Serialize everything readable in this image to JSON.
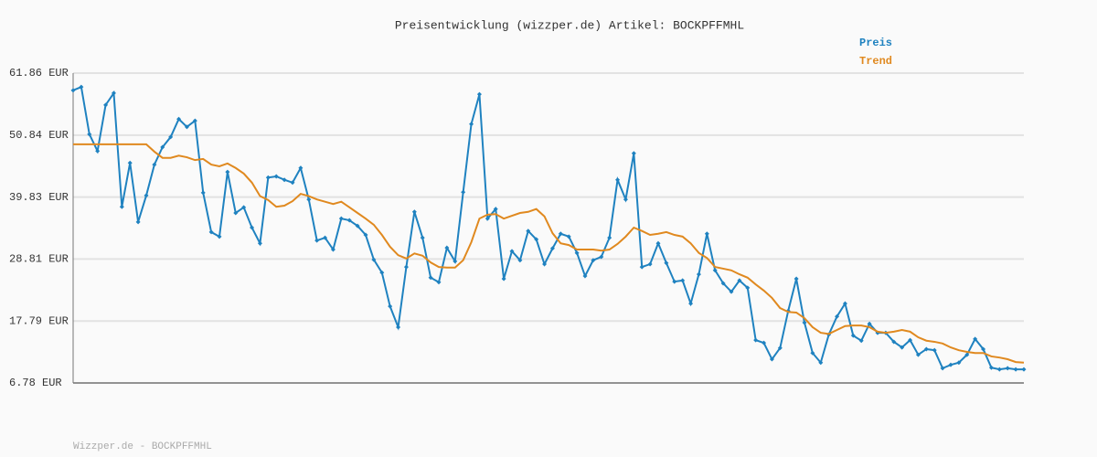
{
  "chart_data": {
    "type": "line",
    "title": "Preisentwicklung (wizzper.de) Artikel: BOCKPFFMHL",
    "footer": "Wizzper.de - BOCKPFFMHL",
    "ylim": [
      6.78,
      61.86
    ],
    "yticks": [
      {
        "value": 6.78,
        "label": "6.78 EUR"
      },
      {
        "value": 17.79,
        "label": "17.79 EUR"
      },
      {
        "value": 28.81,
        "label": "28.81 EUR"
      },
      {
        "value": 39.83,
        "label": "39.83 EUR"
      },
      {
        "value": 50.84,
        "label": "50.84 EUR"
      },
      {
        "value": 61.86,
        "label": "61.86 EUR"
      }
    ],
    "grid": true,
    "series": [
      {
        "name": "Preis",
        "color": "#1f82c0",
        "markers": true,
        "values": [
          58.8,
          59.4,
          51.0,
          48.0,
          56.2,
          58.3,
          38.1,
          45.9,
          35.4,
          40.1,
          45.6,
          48.7,
          50.5,
          53.7,
          52.3,
          53.4,
          40.6,
          33.6,
          32.8,
          44.3,
          37.0,
          38.0,
          34.4,
          31.6,
          43.3,
          43.5,
          42.9,
          42.4,
          45.0,
          39.4,
          32.1,
          32.6,
          30.5,
          36.0,
          35.7,
          34.7,
          33.1,
          28.7,
          26.4,
          20.4,
          16.7,
          27.4,
          37.2,
          32.6,
          25.5,
          24.7,
          30.8,
          28.4,
          40.7,
          52.8,
          58.1,
          36.0,
          37.7,
          25.3,
          30.2,
          28.6,
          33.8,
          32.3,
          27.9,
          30.7,
          33.3,
          32.8,
          29.9,
          25.8,
          28.6,
          29.2,
          32.6,
          42.9,
          39.4,
          47.6,
          27.4,
          27.9,
          31.6,
          28.1,
          24.8,
          25.0,
          20.9,
          26.1,
          33.3,
          26.8,
          24.5,
          23.0,
          25.0,
          23.7,
          14.4,
          13.9,
          11.0,
          13.0,
          19.6,
          25.3,
          17.5,
          12.1,
          10.4,
          15.4,
          18.6,
          20.9,
          15.2,
          14.3,
          17.3,
          15.7,
          15.7,
          14.1,
          13.1,
          14.4,
          11.8,
          12.8,
          12.6,
          9.4,
          10.0,
          10.4,
          11.8,
          14.6,
          12.8,
          9.5,
          9.2,
          9.4,
          9.2,
          9.2
        ]
      },
      {
        "name": "Trend",
        "color": "#e0891f",
        "markers": false,
        "values": [
          49.2,
          49.2,
          49.2,
          49.2,
          49.2,
          49.2,
          49.2,
          49.2,
          49.2,
          49.2,
          47.9,
          46.8,
          46.8,
          47.2,
          46.9,
          46.4,
          46.6,
          45.6,
          45.3,
          45.8,
          45.0,
          44.0,
          42.4,
          40.0,
          39.3,
          38.1,
          38.3,
          39.1,
          40.4,
          40.0,
          39.4,
          39.0,
          38.6,
          39.0,
          38.0,
          37.0,
          36.0,
          34.9,
          33.1,
          31.0,
          29.5,
          28.9,
          29.8,
          29.4,
          28.2,
          27.4,
          27.3,
          27.3,
          28.6,
          31.8,
          36.0,
          36.7,
          36.8,
          36.0,
          36.5,
          37.0,
          37.2,
          37.7,
          36.4,
          33.4,
          31.6,
          31.3,
          30.5,
          30.5,
          30.5,
          30.3,
          30.5,
          31.5,
          32.8,
          34.4,
          33.8,
          33.1,
          33.3,
          33.6,
          33.1,
          32.8,
          31.6,
          29.9,
          29.0,
          27.4,
          27.1,
          26.8,
          26.1,
          25.5,
          24.3,
          23.2,
          21.9,
          20.1,
          19.4,
          19.3,
          18.3,
          16.7,
          15.7,
          15.5,
          16.2,
          16.9,
          17.0,
          17.0,
          16.7,
          15.9,
          15.7,
          15.9,
          16.2,
          15.9,
          14.9,
          14.3,
          14.1,
          13.8,
          13.1,
          12.6,
          12.3,
          12.1,
          12.1,
          11.5,
          11.3,
          11.0,
          10.5,
          10.4
        ]
      }
    ]
  }
}
